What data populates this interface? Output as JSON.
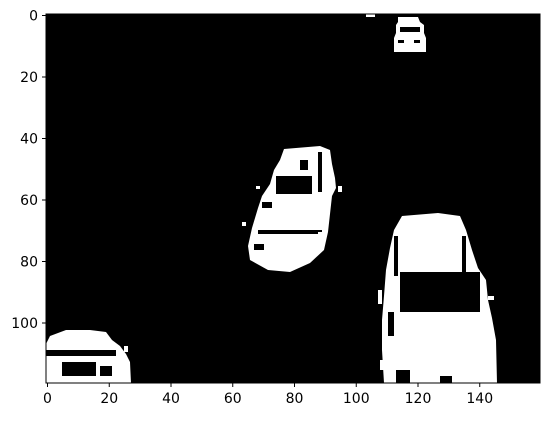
{
  "figure": {
    "background": "#ffffff",
    "image_background": "#000000",
    "foreground": "#ffffff",
    "x_ticks": [
      "0",
      "20",
      "40",
      "60",
      "80",
      "100",
      "120",
      "140"
    ],
    "y_ticks": [
      "0",
      "20",
      "40",
      "60",
      "80",
      "100"
    ],
    "x_range": [
      0,
      160
    ],
    "y_range": [
      0,
      120
    ],
    "y_inverted": true
  }
}
